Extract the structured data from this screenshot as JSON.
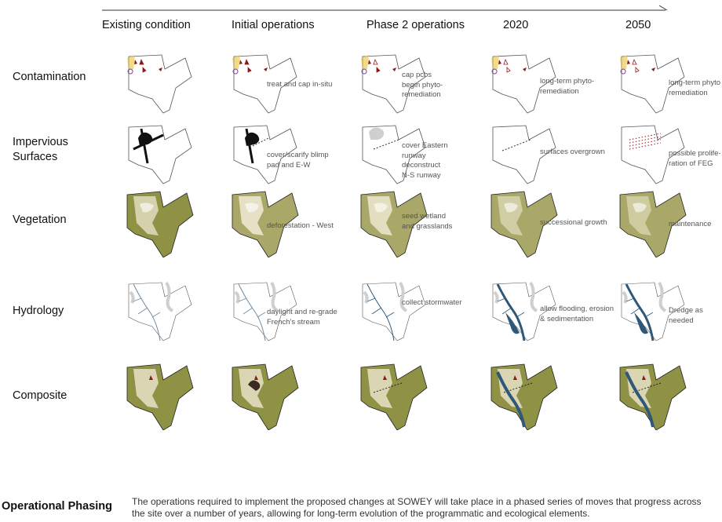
{
  "header": {
    "columns": [
      "Existing condition",
      "Initial operations",
      "Phase 2 operations",
      "2020",
      "2050"
    ]
  },
  "rows": [
    {
      "label": "Contamination",
      "key": "contamination",
      "notes": [
        "",
        "treat and cap in-situ",
        "cap pcbs\nbegin phyto-\nremediation",
        "long-term phyto-\nremediation",
        "long-term phyto\nremediation"
      ]
    },
    {
      "label": "Impervious\nSurfaces",
      "key": "impervious",
      "notes": [
        "",
        "cover/scarify blimp\npad and E-W",
        "cover Eastern\nrunway\ndeconstruct\nN-S runway",
        "surfaces  overgrown",
        "possible prolife-\nration of FEG"
      ]
    },
    {
      "label": "Vegetation",
      "key": "vegetation",
      "notes": [
        "",
        "deforestation - West",
        "seed wetland\nand grasslands",
        "successional growth",
        "maintenance"
      ]
    },
    {
      "label": "Hydrology",
      "key": "hydrology",
      "notes": [
        "",
        "daylight and re-grade\nFrench's stream",
        "collect stormwater",
        "allow flooding, erosion\n& sedimentation",
        "Dredge as needed"
      ]
    },
    {
      "label": "Composite",
      "key": "composite",
      "notes": [
        "",
        "",
        "",
        "",
        ""
      ]
    }
  ],
  "footer": {
    "title": "Operational Phasing",
    "description": "The operations required to implement the proposed changes at SOWEY will take place in a phased series of moves that progress across the site over a number of years, allowing for long-term evolution of the programmatic and ecological elements."
  },
  "colors": {
    "olive": "#8f9145",
    "olive_dark": "#6f7030",
    "cream": "#ece7cf",
    "outline": "#555555",
    "contaminant_red": "#8b1a1a",
    "contaminant_yellow": "#e8c23a",
    "contaminant_purple": "#7b4fa0",
    "water": "#2f5878",
    "grey_fill": "#cfcfcf"
  }
}
